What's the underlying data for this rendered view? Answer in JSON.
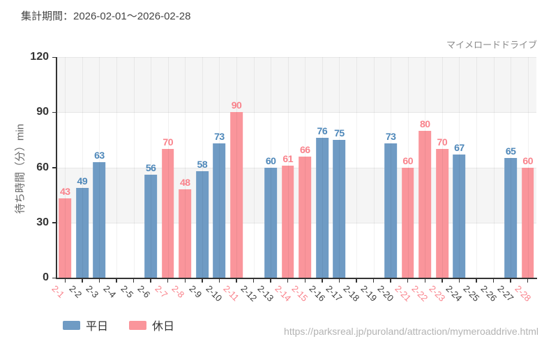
{
  "header": {
    "period_label": "集計期間：2026-02-01～2026-02-28"
  },
  "chart": {
    "attraction": "マイメロードドライブ",
    "ylabel": "待ち時間（分）min"
  },
  "legend": [
    {
      "label": "平日",
      "color": "#6f9bc4"
    },
    {
      "label": "休日",
      "color": "#fa959b"
    }
  ],
  "footer": {
    "url": "https://parksreal.jp/puroland/attraction/mymeroaddrive.html"
  },
  "colors": {
    "weekday_bar": "#6f9bc4",
    "weekday_text": "#4d87b9",
    "holiday_bar": "#fa959b",
    "holiday_text": "#f9828b",
    "xlabel_default": "#3c3c3c",
    "band": "#f5f5f5",
    "axis": "#333333"
  },
  "chart_data": {
    "type": "bar",
    "title": "マイメロードドライブ",
    "xlabel": "",
    "ylabel": "待ち時間（分）min",
    "ylim": [
      0,
      120
    ],
    "yticks": [
      0,
      30,
      60,
      90,
      120
    ],
    "grid": true,
    "legend_position": "bottom-left",
    "categories": [
      "2-1",
      "2-2",
      "2-3",
      "2-4",
      "2-5",
      "2-6",
      "2-7",
      "2-8",
      "2-9",
      "2-10",
      "2-11",
      "2-12",
      "2-13",
      "2-14",
      "2-15",
      "2-16",
      "2-17",
      "2-18",
      "2-19",
      "2-20",
      "2-21",
      "2-22",
      "2-23",
      "2-24",
      "2-25",
      "2-26",
      "2-27",
      "2-28"
    ],
    "series": [
      {
        "name": "平日",
        "values": [
          null,
          49,
          63,
          null,
          null,
          56,
          null,
          null,
          58,
          73,
          null,
          null,
          60,
          null,
          null,
          76,
          75,
          null,
          null,
          73,
          null,
          null,
          null,
          67,
          null,
          null,
          65,
          null
        ]
      },
      {
        "name": "休日",
        "values": [
          43,
          null,
          null,
          null,
          null,
          null,
          70,
          48,
          null,
          null,
          90,
          null,
          null,
          61,
          66,
          null,
          null,
          null,
          null,
          null,
          60,
          80,
          70,
          null,
          null,
          null,
          null,
          60
        ]
      }
    ],
    "holiday_dates": [
      "2-1",
      "2-7",
      "2-8",
      "2-11",
      "2-14",
      "2-15",
      "2-21",
      "2-22",
      "2-23",
      "2-28"
    ]
  }
}
